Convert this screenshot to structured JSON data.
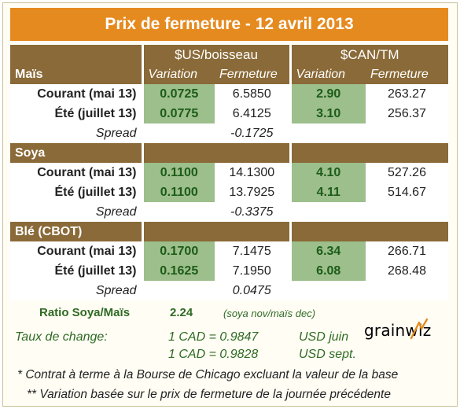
{
  "title": "Prix de fermeture - 12 avril 2013",
  "header": {
    "group_us": "$US/boisseau",
    "group_can": "$CAN/TM",
    "first_section": "Maïs",
    "col_variation": "Variation",
    "col_fermeture": "Fermeture"
  },
  "sections": [
    {
      "name": "Maïs",
      "rows": [
        {
          "label": "Courant (mai 13)",
          "us_var": "0.0725",
          "us_ferm": "6.5850",
          "can_var": "2.90",
          "can_ferm": "263.27"
        },
        {
          "label": "Été (juillet 13)",
          "us_var": "0.0775",
          "us_ferm": "6.4125",
          "can_var": "3.10",
          "can_ferm": "256.37"
        }
      ],
      "spread_label": "Spread",
      "spread": "-0.1725"
    },
    {
      "name": "Soya",
      "rows": [
        {
          "label": "Courant (mai 13)",
          "us_var": "0.1100",
          "us_ferm": "14.1300",
          "can_var": "4.10",
          "can_ferm": "527.26"
        },
        {
          "label": "Été (juillet 13)",
          "us_var": "0.1100",
          "us_ferm": "13.7925",
          "can_var": "4.11",
          "can_ferm": "514.67"
        }
      ],
      "spread_label": "Spread",
      "spread": "-0.3375"
    },
    {
      "name": "Blé (CBOT)",
      "rows": [
        {
          "label": "Courant (mai 13)",
          "us_var": "0.1700",
          "us_ferm": "7.1475",
          "can_var": "6.34",
          "can_ferm": "266.71"
        },
        {
          "label": "Été (juillet 13)",
          "us_var": "0.1625",
          "us_ferm": "7.1950",
          "can_var": "6.08",
          "can_ferm": "268.48"
        }
      ],
      "spread_label": "Spread",
      "spread": "0.0475"
    }
  ],
  "ratio": {
    "label": "Ratio Soya/Maïs",
    "value": "2.24",
    "note": "(soya nov/maïs dec)"
  },
  "exchange": {
    "label": "Taux de change:",
    "rate1": "1 CAD =  0.9847",
    "unit1": "USD juin",
    "rate2": "1 CAD =  0.9828",
    "unit2": "USD sept."
  },
  "notes": {
    "note1": "* Contrat à terme à la Bourse de Chicago excluant la valeur de la base",
    "note2": "** Variation basée sur le prix de fermeture de la journée précédente"
  },
  "logo": {
    "text": "grainwiz"
  },
  "colors": {
    "title_bg": "#e58a1f",
    "header_bg": "#8a6a38",
    "variation_bg": "#9cbf8b",
    "variation_text": "#1d5b18",
    "footer_text": "#2f6b24"
  }
}
